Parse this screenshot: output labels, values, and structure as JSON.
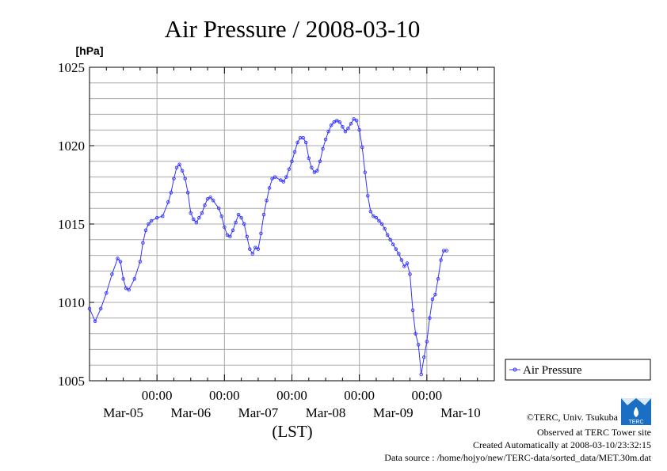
{
  "chart_data": {
    "type": "line",
    "title": "Air Pressure / 2008-03-10",
    "ylabel": "[hPa]",
    "xlabel": "(LST)",
    "ylim": [
      1005,
      1025
    ],
    "yticks": [
      1005,
      1010,
      1015,
      1020,
      1025
    ],
    "xlim": [
      0,
      144
    ],
    "xticks": [
      {
        "x": 24,
        "time": "00:00",
        "date": "Mar-06"
      },
      {
        "x": 48,
        "time": "00:00",
        "date": "Mar-07"
      },
      {
        "x": 72,
        "time": "00:00",
        "date": "Mar-08"
      },
      {
        "x": 96,
        "time": "00:00",
        "date": "Mar-09"
      },
      {
        "x": 120,
        "time": "00:00",
        "date": "Mar-10"
      }
    ],
    "xdate_labels": [
      {
        "x": 12,
        "date": "Mar-05"
      },
      {
        "x": 36,
        "date": "Mar-06"
      },
      {
        "x": 60,
        "date": "Mar-07"
      },
      {
        "x": 84,
        "date": "Mar-08"
      },
      {
        "x": 108,
        "date": "Mar-09"
      },
      {
        "x": 132,
        "date": "Mar-10"
      }
    ],
    "grid": true,
    "legend_position": "right",
    "series": [
      {
        "name": "Air Pressure",
        "color": "#3333ff",
        "points": [
          [
            0,
            1009.6
          ],
          [
            2,
            1008.8
          ],
          [
            4,
            1009.6
          ],
          [
            6,
            1010.6
          ],
          [
            8,
            1011.8
          ],
          [
            10,
            1012.8
          ],
          [
            11,
            1012.6
          ],
          [
            12,
            1011.5
          ],
          [
            13,
            1010.9
          ],
          [
            14,
            1010.8
          ],
          [
            16,
            1011.5
          ],
          [
            18,
            1012.6
          ],
          [
            19,
            1013.8
          ],
          [
            20,
            1014.6
          ],
          [
            21,
            1015.0
          ],
          [
            22,
            1015.2
          ],
          [
            24,
            1015.4
          ],
          [
            26,
            1015.5
          ],
          [
            28,
            1016.4
          ],
          [
            29,
            1017.0
          ],
          [
            30,
            1017.9
          ],
          [
            31,
            1018.6
          ],
          [
            32,
            1018.8
          ],
          [
            33,
            1018.4
          ],
          [
            34,
            1017.9
          ],
          [
            35,
            1017.0
          ],
          [
            36,
            1015.7
          ],
          [
            37,
            1015.3
          ],
          [
            38,
            1015.1
          ],
          [
            39,
            1015.4
          ],
          [
            40,
            1015.7
          ],
          [
            41,
            1016.2
          ],
          [
            42,
            1016.6
          ],
          [
            43,
            1016.7
          ],
          [
            44,
            1016.5
          ],
          [
            46,
            1016.0
          ],
          [
            47,
            1015.5
          ],
          [
            48,
            1014.8
          ],
          [
            49,
            1014.3
          ],
          [
            50,
            1014.2
          ],
          [
            51,
            1014.6
          ],
          [
            52,
            1015.1
          ],
          [
            53,
            1015.6
          ],
          [
            54,
            1015.4
          ],
          [
            55,
            1015.0
          ],
          [
            56,
            1014.2
          ],
          [
            57,
            1013.4
          ],
          [
            58,
            1013.1
          ],
          [
            59,
            1013.5
          ],
          [
            60,
            1013.4
          ],
          [
            61,
            1014.4
          ],
          [
            62,
            1015.6
          ],
          [
            63,
            1016.5
          ],
          [
            64,
            1017.3
          ],
          [
            65,
            1017.9
          ],
          [
            66,
            1018.0
          ],
          [
            68,
            1017.8
          ],
          [
            69,
            1017.7
          ],
          [
            70,
            1018.0
          ],
          [
            71,
            1018.5
          ],
          [
            72,
            1019.0
          ],
          [
            73,
            1019.6
          ],
          [
            74,
            1020.2
          ],
          [
            75,
            1020.5
          ],
          [
            76,
            1020.5
          ],
          [
            77,
            1020.2
          ],
          [
            78,
            1019.2
          ],
          [
            79,
            1018.6
          ],
          [
            80,
            1018.3
          ],
          [
            81,
            1018.4
          ],
          [
            82,
            1019.0
          ],
          [
            83,
            1019.8
          ],
          [
            84,
            1020.4
          ],
          [
            85,
            1020.9
          ],
          [
            86,
            1021.3
          ],
          [
            87,
            1021.5
          ],
          [
            88,
            1021.6
          ],
          [
            89,
            1021.5
          ],
          [
            90,
            1021.2
          ],
          [
            91,
            1020.9
          ],
          [
            92,
            1021.1
          ],
          [
            93,
            1021.4
          ],
          [
            94,
            1021.7
          ],
          [
            95,
            1021.6
          ],
          [
            96,
            1021.0
          ],
          [
            97,
            1019.9
          ],
          [
            98,
            1018.3
          ],
          [
            99,
            1016.8
          ],
          [
            100,
            1015.8
          ],
          [
            101,
            1015.5
          ],
          [
            102,
            1015.4
          ],
          [
            103,
            1015.2
          ],
          [
            104,
            1015.0
          ],
          [
            105,
            1014.7
          ],
          [
            106,
            1014.3
          ],
          [
            107,
            1014.0
          ],
          [
            108,
            1013.7
          ],
          [
            109,
            1013.4
          ],
          [
            110,
            1013.1
          ],
          [
            111,
            1012.7
          ],
          [
            112,
            1012.3
          ],
          [
            113,
            1012.5
          ],
          [
            114,
            1011.8
          ],
          [
            115,
            1009.5
          ],
          [
            116,
            1008.0
          ],
          [
            117,
            1007.3
          ],
          [
            118,
            1005.4
          ],
          [
            119,
            1006.5
          ],
          [
            120,
            1007.5
          ],
          [
            121,
            1009.0
          ],
          [
            122,
            1010.2
          ],
          [
            123,
            1010.5
          ],
          [
            124,
            1011.5
          ],
          [
            125,
            1012.7
          ],
          [
            126,
            1013.3
          ],
          [
            127,
            1013.3
          ]
        ]
      }
    ]
  },
  "credits": {
    "copyright": "©TERC, Univ. Tsukuba",
    "observed": "Observed at TERC Tower site",
    "created": "Created Automatically at 2008-03-10/23:32:15",
    "source": "Data source : /home/hojyo/new/TERC-data/sorted_data/MET.30m.dat",
    "logo_text": "TERC"
  }
}
